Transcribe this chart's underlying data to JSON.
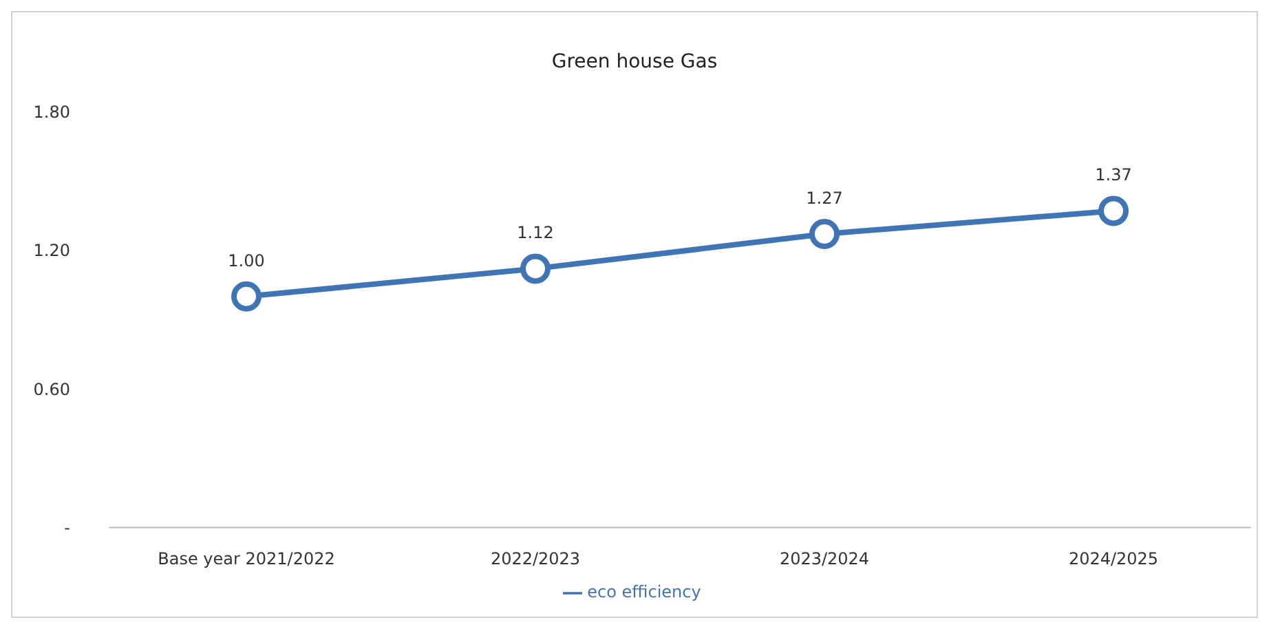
{
  "chart_data": {
    "type": "line",
    "title": "Green house Gas",
    "categories": [
      "Base year 2021/2022",
      "2022/2023",
      "2023/2024",
      "2024/2025"
    ],
    "series": [
      {
        "name": "eco efficiency",
        "color": "#3f74b5",
        "values": [
          1.0,
          1.12,
          1.27,
          1.37
        ],
        "value_labels": [
          "1.00",
          "1.12",
          "1.27",
          "1.37"
        ]
      }
    ],
    "ylim": [
      0,
      1.8
    ],
    "yticks": [
      {
        "value": 0,
        "label": "-"
      },
      {
        "value": 0.6,
        "label": "0.60"
      },
      {
        "value": 1.2,
        "label": "1.20"
      },
      {
        "value": 1.8,
        "label": "1.80"
      }
    ],
    "grid": false,
    "legend": "bottom",
    "marker": "circle",
    "line_style": "solid"
  }
}
